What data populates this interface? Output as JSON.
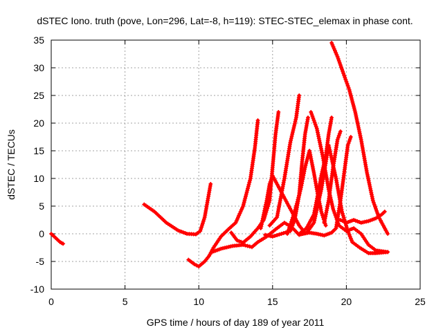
{
  "chart_data": {
    "type": "scatter",
    "title": "dSTEC Iono. truth (pove, Lon=296, Lat=-8, h=119): STEC-STEC_elemax in phase cont.",
    "xlabel": "GPS time / hours of day 189 of year 2011",
    "ylabel": "dSTEC  / TECUs",
    "xlim": [
      0,
      25
    ],
    "ylim": [
      -10,
      35
    ],
    "xticks": [
      0,
      5,
      10,
      15,
      20,
      25
    ],
    "yticks": [
      -10,
      -5,
      0,
      5,
      10,
      15,
      20,
      25,
      30,
      35
    ],
    "grid": true,
    "marker": "plus",
    "color": "#ff0000",
    "series": [
      {
        "points": [
          [
            0.0,
            0.0
          ],
          [
            0.2,
            -0.5
          ],
          [
            0.4,
            -1.0
          ],
          [
            0.6,
            -1.5
          ],
          [
            0.8,
            -1.8
          ]
        ]
      },
      {
        "points": [
          [
            6.3,
            5.3
          ],
          [
            7.0,
            4.0
          ],
          [
            7.8,
            2.0
          ],
          [
            8.6,
            0.6
          ],
          [
            9.2,
            0.0
          ],
          [
            9.8,
            -0.1
          ],
          [
            10.1,
            0.5
          ],
          [
            10.4,
            3.0
          ],
          [
            10.6,
            6.0
          ],
          [
            10.8,
            9.0
          ]
        ]
      },
      {
        "points": [
          [
            9.3,
            -4.7
          ],
          [
            9.7,
            -5.5
          ],
          [
            10.0,
            -5.9
          ],
          [
            10.4,
            -5.0
          ],
          [
            10.7,
            -4.0
          ],
          [
            11.0,
            -2.5
          ],
          [
            11.5,
            -0.5
          ],
          [
            12.0,
            0.8
          ],
          [
            12.5,
            2.0
          ],
          [
            13.0,
            5.0
          ],
          [
            13.5,
            10.0
          ],
          [
            13.8,
            15.5
          ],
          [
            14.0,
            20.5
          ]
        ]
      },
      {
        "points": [
          [
            10.9,
            -3.3
          ],
          [
            11.5,
            -2.7
          ],
          [
            12.3,
            -2.2
          ],
          [
            13.0,
            -2.0
          ],
          [
            13.6,
            -2.4
          ],
          [
            14.0,
            -1.5
          ],
          [
            14.6,
            -0.5
          ],
          [
            15.2,
            0.8
          ],
          [
            15.8,
            2.0
          ],
          [
            16.3,
            1.2
          ],
          [
            16.8,
            -0.2
          ],
          [
            17.3,
            0.2
          ]
        ]
      },
      {
        "points": [
          [
            12.2,
            0.2
          ],
          [
            12.6,
            -1.2
          ],
          [
            13.0,
            -1.6
          ],
          [
            13.5,
            -0.5
          ],
          [
            14.0,
            1.0
          ],
          [
            14.4,
            2.5
          ],
          [
            14.8,
            6.0
          ],
          [
            15.0,
            12.0
          ],
          [
            15.2,
            18.0
          ],
          [
            15.4,
            22.0
          ]
        ]
      },
      {
        "points": [
          [
            14.2,
            1.0
          ],
          [
            14.4,
            3.5
          ],
          [
            14.6,
            6.0
          ],
          [
            14.8,
            9.0
          ],
          [
            15.0,
            10.5
          ],
          [
            15.5,
            8.0
          ],
          [
            16.0,
            5.5
          ],
          [
            16.5,
            3.0
          ],
          [
            16.8,
            1.5
          ],
          [
            17.1,
            0.5
          ]
        ]
      },
      {
        "points": [
          [
            14.5,
            -0.2
          ],
          [
            15.0,
            -0.5
          ],
          [
            15.6,
            0.0
          ],
          [
            16.2,
            0.5
          ],
          [
            16.5,
            2.5
          ],
          [
            16.8,
            7.0
          ],
          [
            17.0,
            13.0
          ],
          [
            17.2,
            18.0
          ],
          [
            17.4,
            21.0
          ]
        ]
      },
      {
        "points": [
          [
            14.8,
            1.5
          ],
          [
            15.3,
            3.0
          ],
          [
            15.8,
            10.0
          ],
          [
            16.2,
            16.5
          ],
          [
            16.6,
            21.0
          ],
          [
            16.8,
            25.0
          ]
        ]
      },
      {
        "points": [
          [
            16.0,
            0.0
          ],
          [
            16.5,
            4.0
          ],
          [
            16.9,
            8.0
          ],
          [
            17.2,
            12.0
          ],
          [
            17.5,
            15.0
          ],
          [
            17.8,
            11.0
          ],
          [
            18.0,
            8.0
          ],
          [
            18.3,
            4.0
          ],
          [
            18.6,
            1.5
          ]
        ]
      },
      {
        "points": [
          [
            16.9,
            0.2
          ],
          [
            17.3,
            1.0
          ],
          [
            17.8,
            3.5
          ],
          [
            18.1,
            7.5
          ],
          [
            18.3,
            10.5
          ],
          [
            18.6,
            14.0
          ],
          [
            18.8,
            18.0
          ],
          [
            19.0,
            21.0
          ]
        ]
      },
      {
        "points": [
          [
            17.4,
            0.5
          ],
          [
            17.8,
            2.0
          ],
          [
            18.3,
            8.0
          ],
          [
            18.8,
            16.0
          ],
          [
            19.3,
            10.0
          ],
          [
            19.7,
            4.0
          ],
          [
            20.1,
            0.5
          ],
          [
            20.4,
            -1.5
          ],
          [
            20.9,
            -2.5
          ],
          [
            21.5,
            -3.5
          ],
          [
            22.0,
            -3.5
          ],
          [
            22.8,
            -3.3
          ]
        ]
      },
      {
        "points": [
          [
            17.6,
            22.0
          ],
          [
            18.0,
            19.0
          ],
          [
            18.4,
            14.0
          ],
          [
            18.8,
            8.0
          ],
          [
            19.1,
            4.5
          ],
          [
            19.5,
            1.5
          ],
          [
            20.0,
            0.5
          ],
          [
            20.5,
            1.0
          ],
          [
            21.0,
            0.0
          ],
          [
            21.5,
            -2.0
          ],
          [
            22.0,
            -3.0
          ],
          [
            22.8,
            -3.3
          ]
        ]
      },
      {
        "points": [
          [
            17.0,
            0.0
          ],
          [
            17.5,
            0.2
          ],
          [
            18.0,
            0.0
          ],
          [
            18.5,
            -0.3
          ],
          [
            19.0,
            0.2
          ],
          [
            19.3,
            1.0
          ],
          [
            19.6,
            6.0
          ],
          [
            19.9,
            12.0
          ],
          [
            20.1,
            16.0
          ],
          [
            20.3,
            17.5
          ]
        ]
      },
      {
        "points": [
          [
            18.5,
            2.0
          ],
          [
            18.8,
            6.0
          ],
          [
            19.1,
            12.0
          ],
          [
            19.4,
            17.0
          ],
          [
            19.6,
            18.5
          ]
        ]
      },
      {
        "points": [
          [
            19.0,
            34.5
          ],
          [
            19.4,
            32.0
          ],
          [
            19.8,
            29.0
          ],
          [
            20.2,
            26.0
          ],
          [
            20.6,
            22.0
          ],
          [
            21.0,
            17.0
          ],
          [
            21.4,
            11.0
          ],
          [
            21.8,
            6.0
          ],
          [
            22.2,
            3.0
          ],
          [
            22.5,
            1.5
          ],
          [
            22.8,
            0.0
          ]
        ]
      },
      {
        "points": [
          [
            19.6,
            2.5
          ],
          [
            20.0,
            2.0
          ],
          [
            20.5,
            2.5
          ],
          [
            21.0,
            2.0
          ],
          [
            21.5,
            2.3
          ],
          [
            22.0,
            2.8
          ],
          [
            22.4,
            3.5
          ],
          [
            22.6,
            4.0
          ]
        ]
      }
    ]
  }
}
